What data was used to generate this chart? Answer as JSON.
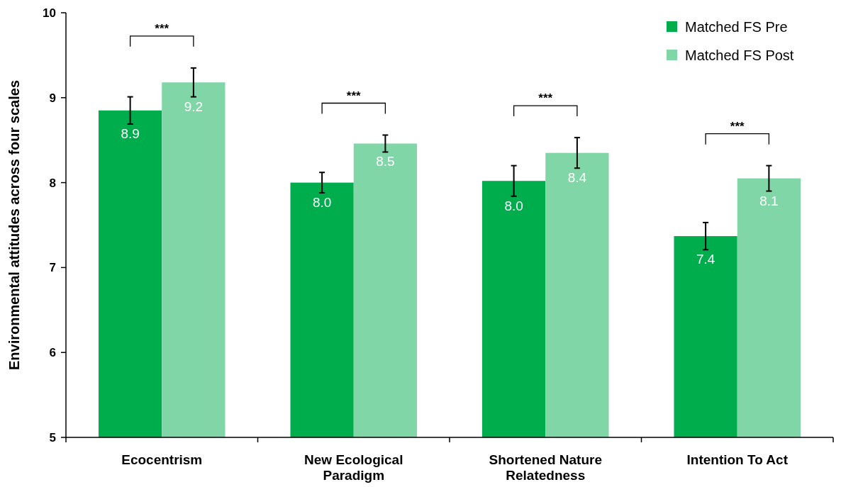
{
  "chart_data": {
    "type": "bar",
    "ylabel": "Environmental attitudes across four scales",
    "categories": [
      "Ecocentrism",
      "New Ecological Paradigm",
      "Shortened Nature Relatedness",
      "Intention To Act"
    ],
    "series": [
      {
        "name": "Matched FS Pre",
        "color": "#00ad4d",
        "values": [
          8.85,
          8.0,
          8.02,
          7.37
        ],
        "errors": [
          0.16,
          0.12,
          0.18,
          0.16
        ],
        "value_labels": [
          "8.9",
          "8.0",
          "8.0",
          "7.4"
        ]
      },
      {
        "name": "Matched FS Post",
        "color": "#80d6a6",
        "values": [
          9.18,
          8.46,
          8.35,
          8.05
        ],
        "errors": [
          0.17,
          0.1,
          0.18,
          0.15
        ],
        "value_labels": [
          "9.2",
          "8.5",
          "8.4",
          "8.1"
        ]
      }
    ],
    "ylim": [
      5,
      10
    ],
    "yticks": [
      5,
      6,
      7,
      8,
      9,
      10
    ],
    "grid": false,
    "legend": "top right",
    "annotations": [
      "***",
      "***",
      "***",
      "***"
    ]
  }
}
